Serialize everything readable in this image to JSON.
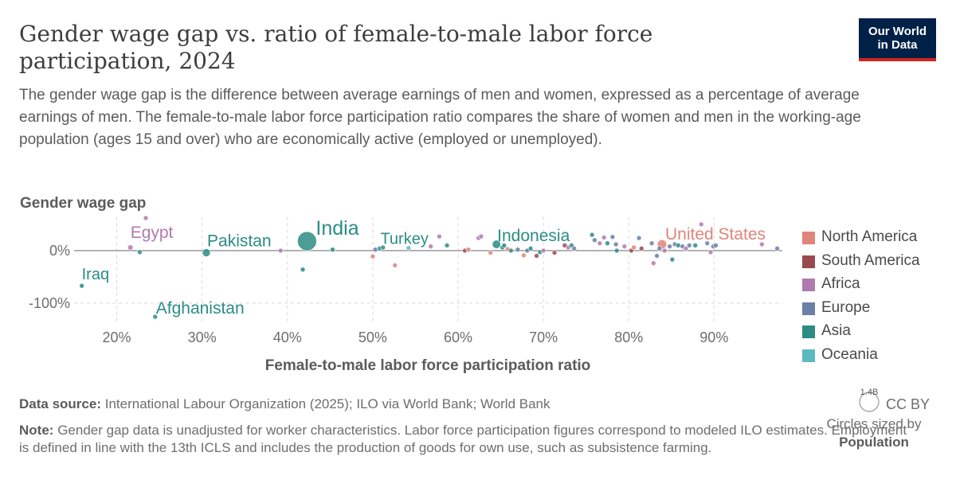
{
  "header": {
    "title": "Gender wage gap vs. ratio of female-to-male labor force participation, 2024",
    "subtitle": "The gender wage gap is the difference between average earnings of men and women, expressed as a percentage of average earnings of men. The female-to-male labor force participation ratio compares the share of women and men in the working-age population (ages 15 and over) who are economically active (employed or unemployed).",
    "logo_line1": "Our World",
    "logo_line2": "in Data"
  },
  "colors": {
    "north_america": "#e0857a",
    "south_america": "#9a4a4f",
    "africa": "#b07aaf",
    "europe": "#6b7fa8",
    "asia": "#2b8c84",
    "oceania": "#5fb8c0"
  },
  "legend": {
    "items": [
      {
        "label": "North America",
        "color": "#e0857a"
      },
      {
        "label": "South America",
        "color": "#9a4a4f"
      },
      {
        "label": "Africa",
        "color": "#b07aaf"
      },
      {
        "label": "Europe",
        "color": "#6b7fa8"
      },
      {
        "label": "Asia",
        "color": "#2b8c84"
      },
      {
        "label": "Oceania",
        "color": "#5fb8c0"
      }
    ],
    "size_value": "1.4B",
    "size_caption": "Circles sized by",
    "size_variable": "Population"
  },
  "footer": {
    "source_label": "Data source:",
    "source_text": "International Labour Organization (2025); ILO via World Bank; World Bank",
    "note_label": "Note:",
    "note_text": "Gender gap data is unadjusted for worker characteristics. Labor force participation figures correspond to modeled ILO estimates. Employment is defined in line with the 13th ICLS and includes the production of goods for own use, such as subsistence farming.",
    "license": "CC BY"
  },
  "chart_data": {
    "type": "scatter",
    "title": "Gender wage gap vs. ratio of female-to-male labor force participation, 2024",
    "xlabel": "Female-to-male labor force participation ratio",
    "ylabel": "Gender wage gap",
    "x_ticks": [
      "20%",
      "30%",
      "40%",
      "50%",
      "60%",
      "70%",
      "80%",
      "90%"
    ],
    "y_ticks": [
      "0%",
      "-100%"
    ],
    "x_range": [
      15,
      98
    ],
    "y_range": [
      -135,
      65
    ],
    "grid": true,
    "legend_position": "right",
    "points": [
      {
        "name": "Iraq",
        "x": 15.9,
        "y": -67,
        "region": "Asia",
        "pop": 46,
        "label": "Iraq"
      },
      {
        "name": "Egypt",
        "x": 21.6,
        "y": 6,
        "region": "Africa",
        "pop": 114,
        "label": "Egypt"
      },
      {
        "name": "Afghanistan",
        "x": 24.5,
        "y": -126,
        "region": "Asia",
        "pop": 42,
        "label": "Afghanistan"
      },
      {
        "name": "Pakistan",
        "x": 30.5,
        "y": -4,
        "region": "Asia",
        "pop": 250,
        "label": "Pakistan"
      },
      {
        "name": "India",
        "x": 42.3,
        "y": 18,
        "region": "Asia",
        "pop": 1440,
        "label": "India"
      },
      {
        "name": "Turkey",
        "x": 50.8,
        "y": 4,
        "region": "Asia",
        "pop": 86,
        "label": "Turkey"
      },
      {
        "name": "Indonesia",
        "x": 64.5,
        "y": 12,
        "region": "Asia",
        "pop": 280,
        "label": "Indonesia"
      },
      {
        "name": "United States",
        "x": 83.9,
        "y": 12,
        "region": "North America",
        "pop": 340,
        "label": "United States"
      },
      {
        "name": "",
        "x": 23.4,
        "y": 62,
        "region": "Africa",
        "pop": 20
      },
      {
        "name": "",
        "x": 22.7,
        "y": -3,
        "region": "Asia",
        "pop": 8
      },
      {
        "name": "",
        "x": 39.2,
        "y": 0,
        "region": "Africa",
        "pop": 10
      },
      {
        "name": "",
        "x": 41.8,
        "y": -36,
        "region": "Asia",
        "pop": 10
      },
      {
        "name": "",
        "x": 45.3,
        "y": 2,
        "region": "Asia",
        "pop": 8
      },
      {
        "name": "",
        "x": 50.0,
        "y": -11,
        "region": "North America",
        "pop": 8
      },
      {
        "name": "",
        "x": 50.3,
        "y": 2,
        "region": "Europe",
        "pop": 6
      },
      {
        "name": "",
        "x": 51.2,
        "y": 6,
        "region": "Asia",
        "pop": 12
      },
      {
        "name": "",
        "x": 52.6,
        "y": -28,
        "region": "North America",
        "pop": 10
      },
      {
        "name": "",
        "x": 54.2,
        "y": 5,
        "region": "Oceania",
        "pop": 8
      },
      {
        "name": "",
        "x": 56.8,
        "y": 8,
        "region": "Africa",
        "pop": 6
      },
      {
        "name": "",
        "x": 57.8,
        "y": 27,
        "region": "Africa",
        "pop": 10
      },
      {
        "name": "",
        "x": 58.7,
        "y": 10,
        "region": "Asia",
        "pop": 6
      },
      {
        "name": "",
        "x": 60.8,
        "y": 0,
        "region": "South America",
        "pop": 30
      },
      {
        "name": "",
        "x": 61.2,
        "y": 2,
        "region": "North America",
        "pop": 10
      },
      {
        "name": "",
        "x": 62.4,
        "y": 24,
        "region": "Africa",
        "pop": 8
      },
      {
        "name": "",
        "x": 62.7,
        "y": 27,
        "region": "Africa",
        "pop": 8
      },
      {
        "name": "",
        "x": 63.8,
        "y": -4,
        "region": "North America",
        "pop": 6
      },
      {
        "name": "",
        "x": 65.2,
        "y": 6,
        "region": "Asia",
        "pop": 12
      },
      {
        "name": "",
        "x": 65.4,
        "y": 10,
        "region": "Asia",
        "pop": 8
      },
      {
        "name": "",
        "x": 65.8,
        "y": 3,
        "region": "North America",
        "pop": 20
      },
      {
        "name": "",
        "x": 66.2,
        "y": 0,
        "region": "Asia",
        "pop": 6
      },
      {
        "name": "",
        "x": 67.0,
        "y": 2,
        "region": "Europe",
        "pop": 8
      },
      {
        "name": "",
        "x": 67.7,
        "y": -9,
        "region": "North America",
        "pop": 6
      },
      {
        "name": "",
        "x": 68.1,
        "y": 0,
        "region": "Europe",
        "pop": 15
      },
      {
        "name": "",
        "x": 68.5,
        "y": 4,
        "region": "Asia",
        "pop": 8
      },
      {
        "name": "",
        "x": 69.2,
        "y": -10,
        "region": "South America",
        "pop": 10
      },
      {
        "name": "",
        "x": 69.6,
        "y": -3,
        "region": "Asia",
        "pop": 15
      },
      {
        "name": "",
        "x": 70.0,
        "y": 0,
        "region": "Africa",
        "pop": 8
      },
      {
        "name": "",
        "x": 71.3,
        "y": -4,
        "region": "South America",
        "pop": 10
      },
      {
        "name": "",
        "x": 72.5,
        "y": 10,
        "region": "South America",
        "pop": 30
      },
      {
        "name": "",
        "x": 72.9,
        "y": 6,
        "region": "Africa",
        "pop": 20
      },
      {
        "name": "",
        "x": 73.3,
        "y": 10,
        "region": "Asia",
        "pop": 15
      },
      {
        "name": "",
        "x": 73.6,
        "y": 4,
        "region": "Europe",
        "pop": 10
      },
      {
        "name": "",
        "x": 75.7,
        "y": 30,
        "region": "Asia",
        "pop": 8
      },
      {
        "name": "",
        "x": 76.0,
        "y": 20,
        "region": "Europe",
        "pop": 8
      },
      {
        "name": "",
        "x": 76.6,
        "y": 14,
        "region": "Africa",
        "pop": 6
      },
      {
        "name": "",
        "x": 77.1,
        "y": 25,
        "region": "Africa",
        "pop": 8
      },
      {
        "name": "",
        "x": 77.5,
        "y": 14,
        "region": "Asia",
        "pop": 8
      },
      {
        "name": "",
        "x": 78.1,
        "y": 26,
        "region": "Europe",
        "pop": 20
      },
      {
        "name": "",
        "x": 78.5,
        "y": 12,
        "region": "Europe",
        "pop": 15
      },
      {
        "name": "",
        "x": 78.6,
        "y": 0,
        "region": "Asia",
        "pop": 8
      },
      {
        "name": "",
        "x": 79.5,
        "y": 8,
        "region": "Africa",
        "pop": 6
      },
      {
        "name": "",
        "x": 80.3,
        "y": 0,
        "region": "South America",
        "pop": 8
      },
      {
        "name": "",
        "x": 80.6,
        "y": 6,
        "region": "North America",
        "pop": 6
      },
      {
        "name": "",
        "x": 81.2,
        "y": 24,
        "region": "Europe",
        "pop": 10
      },
      {
        "name": "",
        "x": 81.5,
        "y": 4,
        "region": "South America",
        "pop": 6
      },
      {
        "name": "",
        "x": 82.7,
        "y": 14,
        "region": "Europe",
        "pop": 8
      },
      {
        "name": "",
        "x": 82.9,
        "y": -24,
        "region": "Africa",
        "pop": 8
      },
      {
        "name": "",
        "x": 83.3,
        "y": -10,
        "region": "Europe",
        "pop": 8
      },
      {
        "name": "",
        "x": 83.6,
        "y": 4,
        "region": "Europe",
        "pop": 10
      },
      {
        "name": "",
        "x": 84.2,
        "y": 0,
        "region": "Africa",
        "pop": 8
      },
      {
        "name": "",
        "x": 84.8,
        "y": 8,
        "region": "Europe",
        "pop": 20
      },
      {
        "name": "",
        "x": 85.1,
        "y": -17,
        "region": "Asia",
        "pop": 8
      },
      {
        "name": "",
        "x": 85.4,
        "y": 12,
        "region": "Europe",
        "pop": 10
      },
      {
        "name": "",
        "x": 85.8,
        "y": 10,
        "region": "Asia",
        "pop": 8
      },
      {
        "name": "",
        "x": 86.3,
        "y": 8,
        "region": "Europe",
        "pop": 8
      },
      {
        "name": "",
        "x": 86.7,
        "y": 4,
        "region": "Africa",
        "pop": 6
      },
      {
        "name": "",
        "x": 87.1,
        "y": 10,
        "region": "Europe",
        "pop": 6
      },
      {
        "name": "",
        "x": 87.8,
        "y": 10,
        "region": "Asia",
        "pop": 8
      },
      {
        "name": "",
        "x": 88.5,
        "y": 50,
        "region": "Africa",
        "pop": 6
      },
      {
        "name": "",
        "x": 89.2,
        "y": 14,
        "region": "Europe",
        "pop": 8
      },
      {
        "name": "",
        "x": 89.6,
        "y": -3,
        "region": "Africa",
        "pop": 8
      },
      {
        "name": "",
        "x": 89.9,
        "y": 8,
        "region": "Europe",
        "pop": 10
      },
      {
        "name": "",
        "x": 90.2,
        "y": 10,
        "region": "Europe",
        "pop": 6
      },
      {
        "name": "",
        "x": 95.6,
        "y": 12,
        "region": "Africa",
        "pop": 6
      },
      {
        "name": "",
        "x": 97.4,
        "y": 4,
        "region": "Europe",
        "pop": 6
      }
    ]
  }
}
